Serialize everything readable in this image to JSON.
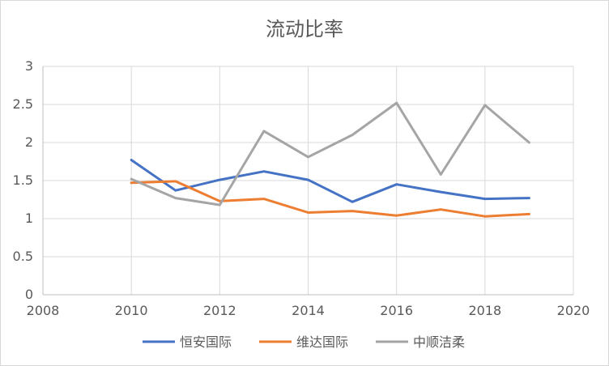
{
  "chart_data": {
    "type": "scatter",
    "title": "流动比率",
    "xlim": [
      2008,
      2020
    ],
    "ylim": [
      0,
      3
    ],
    "xticks": [
      "2008",
      "2010",
      "2012",
      "2014",
      "2016",
      "2018",
      "2020"
    ],
    "yticks": [
      "0",
      "0.5",
      "1",
      "1.5",
      "2",
      "2.5",
      "3"
    ],
    "grid": true,
    "legend": "bottom",
    "series": [
      {
        "name": "恒安国际",
        "color": "#4472C4",
        "x": [
          2010,
          2011,
          2012,
          2013,
          2014,
          2015,
          2016,
          2017,
          2018,
          2019
        ],
        "y": [
          1.77,
          1.37,
          1.51,
          1.62,
          1.51,
          1.22,
          1.45,
          1.35,
          1.26,
          1.27
        ]
      },
      {
        "name": "维达国际",
        "color": "#ED7D31",
        "x": [
          2010,
          2011,
          2012,
          2013,
          2014,
          2015,
          2016,
          2017,
          2018,
          2019
        ],
        "y": [
          1.47,
          1.49,
          1.23,
          1.26,
          1.08,
          1.1,
          1.04,
          1.12,
          1.03,
          1.06
        ]
      },
      {
        "name": "中顺洁柔",
        "color": "#A5A5A5",
        "x": [
          2010,
          2011,
          2012,
          2013,
          2014,
          2015,
          2016,
          2017,
          2018,
          2019
        ],
        "y": [
          1.52,
          1.27,
          1.18,
          2.15,
          1.81,
          2.1,
          2.52,
          1.58,
          2.49,
          2.0
        ]
      }
    ]
  }
}
